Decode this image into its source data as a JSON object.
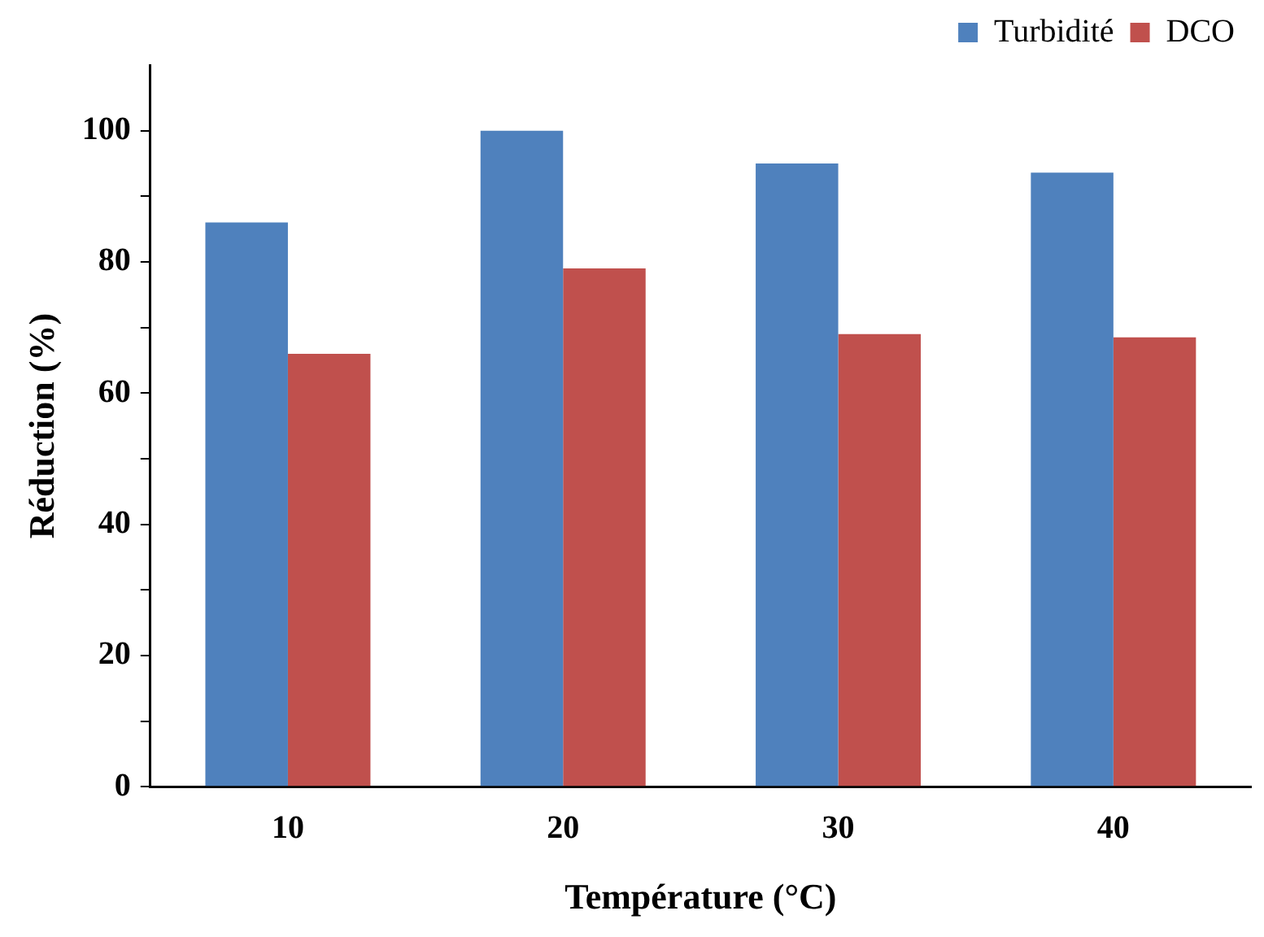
{
  "chart_data": {
    "type": "bar",
    "xlabel": "Température (°C)",
    "ylabel": "Réduction (%)",
    "categories": [
      "10",
      "20",
      "30",
      "40"
    ],
    "series": [
      {
        "name": "Turbidité",
        "color": "#4f81bd",
        "values": [
          86,
          100,
          95,
          93.6
        ]
      },
      {
        "name": "DCO",
        "color": "#c0504d",
        "values": [
          66,
          79,
          69,
          68.5
        ]
      }
    ],
    "ylim": [
      0,
      110
    ],
    "yticks": [
      0,
      {
        "value": 10,
        "label": null
      },
      20,
      {
        "value": 30,
        "label": null
      },
      40,
      {
        "value": 50,
        "label": null
      },
      60,
      {
        "value": 70,
        "label": null
      },
      80,
      {
        "value": 90,
        "label": null
      },
      100
    ],
    "grid": false,
    "legend": "top right"
  }
}
